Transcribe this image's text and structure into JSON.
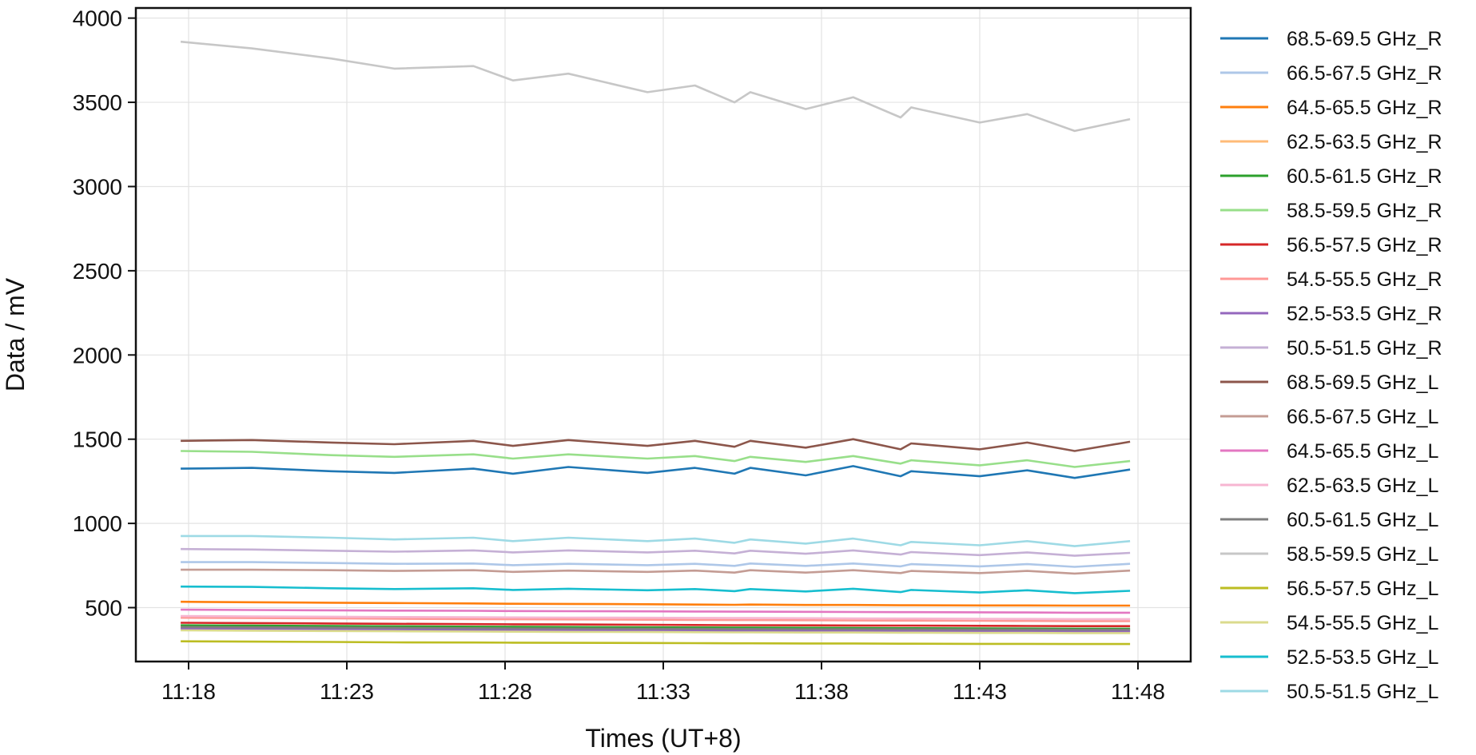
{
  "chart_data": {
    "type": "line",
    "title": "",
    "xlabel": "Times (UT+8)",
    "ylabel": "Data / mV",
    "xlim": [
      "11:16:20",
      "11:49:40"
    ],
    "ylim": [
      180,
      4060
    ],
    "x_ticks": [
      "11:18",
      "11:23",
      "11:28",
      "11:33",
      "11:38",
      "11:43",
      "11:48"
    ],
    "y_ticks": [
      500,
      1000,
      1500,
      2000,
      2500,
      3000,
      3500,
      4000
    ],
    "grid": true,
    "legend_position": "outside-right",
    "x": [
      "11:17:45",
      "11:20:00",
      "11:22:30",
      "11:24:30",
      "11:27:00",
      "11:28:15",
      "11:30:00",
      "11:32:30",
      "11:34:00",
      "11:35:15",
      "11:35:45",
      "11:37:30",
      "11:39:00",
      "11:40:30",
      "11:40:50",
      "11:43:00",
      "11:44:30",
      "11:46:00",
      "11:47:45"
    ],
    "series": [
      {
        "name": "68.5-69.5 GHz_R",
        "color": "#1f77b4",
        "values": [
          1325,
          1330,
          1310,
          1300,
          1325,
          1295,
          1335,
          1300,
          1330,
          1295,
          1330,
          1285,
          1340,
          1280,
          1310,
          1280,
          1315,
          1270,
          1320
        ]
      },
      {
        "name": "66.5-67.5 GHz_R",
        "color": "#aec7e8",
        "values": [
          770,
          770,
          765,
          760,
          762,
          752,
          760,
          752,
          760,
          748,
          762,
          748,
          762,
          745,
          758,
          745,
          758,
          742,
          760
        ]
      },
      {
        "name": "64.5-65.5 GHz_R",
        "color": "#ff7f0e",
        "values": [
          535,
          532,
          529,
          527,
          525,
          523,
          522,
          520,
          518,
          517,
          518,
          516,
          516,
          514,
          514,
          513,
          513,
          512,
          512
        ]
      },
      {
        "name": "62.5-63.5 GHz_R",
        "color": "#ffbb78",
        "values": [
          380,
          378,
          376,
          375,
          373,
          372,
          371,
          370,
          369,
          368,
          368,
          367,
          367,
          366,
          366,
          365,
          365,
          364,
          364
        ]
      },
      {
        "name": "60.5-61.5 GHz_R",
        "color": "#2ca02c",
        "values": [
          395,
          393,
          391,
          389,
          387,
          386,
          385,
          383,
          382,
          381,
          381,
          380,
          379,
          378,
          378,
          377,
          376,
          375,
          375
        ]
      },
      {
        "name": "58.5-59.5 GHz_R",
        "color": "#98df8a",
        "values": [
          1430,
          1425,
          1405,
          1395,
          1410,
          1385,
          1410,
          1385,
          1400,
          1370,
          1395,
          1365,
          1400,
          1355,
          1375,
          1345,
          1375,
          1335,
          1370
        ]
      },
      {
        "name": "56.5-57.5 GHz_R",
        "color": "#d62728",
        "values": [
          410,
          408,
          406,
          404,
          402,
          401,
          400,
          398,
          397,
          396,
          396,
          395,
          394,
          393,
          393,
          392,
          391,
          390,
          390
        ]
      },
      {
        "name": "54.5-55.5 GHz_R",
        "color": "#ff9896",
        "values": [
          440,
          438,
          436,
          434,
          432,
          431,
          430,
          428,
          427,
          426,
          426,
          425,
          424,
          423,
          423,
          422,
          421,
          420,
          420
        ]
      },
      {
        "name": "52.5-53.5 GHz_R",
        "color": "#9467bd",
        "values": [
          375,
          373,
          371,
          369,
          368,
          367,
          366,
          365,
          364,
          363,
          363,
          362,
          362,
          361,
          361,
          360,
          360,
          359,
          359
        ]
      },
      {
        "name": "50.5-51.5 GHz_R",
        "color": "#c5b0d5",
        "values": [
          848,
          845,
          838,
          832,
          840,
          828,
          840,
          828,
          838,
          822,
          838,
          820,
          840,
          815,
          830,
          812,
          828,
          808,
          825
        ]
      },
      {
        "name": "68.5-69.5 GHz_L",
        "color": "#8c564b",
        "values": [
          1490,
          1495,
          1480,
          1470,
          1490,
          1460,
          1495,
          1460,
          1490,
          1455,
          1490,
          1450,
          1500,
          1440,
          1475,
          1440,
          1480,
          1430,
          1485
        ]
      },
      {
        "name": "66.5-67.5 GHz_L",
        "color": "#c49c94",
        "values": [
          725,
          725,
          722,
          718,
          722,
          712,
          720,
          712,
          720,
          708,
          722,
          708,
          722,
          705,
          718,
          705,
          718,
          702,
          720
        ]
      },
      {
        "name": "64.5-65.5 GHz_L",
        "color": "#e377c2",
        "values": [
          488,
          486,
          484,
          482,
          481,
          480,
          479,
          478,
          477,
          476,
          476,
          475,
          474,
          473,
          473,
          472,
          471,
          470,
          470
        ]
      },
      {
        "name": "62.5-63.5 GHz_L",
        "color": "#f7b6d2",
        "values": [
          450,
          448,
          446,
          444,
          443,
          442,
          441,
          440,
          439,
          438,
          438,
          437,
          436,
          435,
          435,
          434,
          433,
          432,
          432
        ]
      },
      {
        "name": "60.5-61.5 GHz_L",
        "color": "#7f7f7f",
        "values": [
          385,
          383,
          381,
          380,
          378,
          377,
          376,
          375,
          374,
          373,
          373,
          372,
          372,
          371,
          371,
          370,
          370,
          369,
          369
        ]
      },
      {
        "name": "58.5-59.5 GHz_L",
        "color": "#c7c7c7",
        "values": [
          3860,
          3820,
          3760,
          3700,
          3715,
          3630,
          3670,
          3560,
          3600,
          3500,
          3560,
          3460,
          3530,
          3410,
          3470,
          3380,
          3430,
          3330,
          3400
        ]
      },
      {
        "name": "56.5-57.5 GHz_L",
        "color": "#bcbd22",
        "values": [
          300,
          298,
          296,
          294,
          293,
          292,
          291,
          290,
          289,
          288,
          288,
          287,
          287,
          286,
          286,
          285,
          285,
          284,
          284
        ]
      },
      {
        "name": "54.5-55.5 GHz_L",
        "color": "#dbdb8d",
        "values": [
          365,
          363,
          361,
          360,
          358,
          357,
          356,
          355,
          354,
          353,
          353,
          352,
          352,
          351,
          351,
          350,
          350,
          349,
          349
        ]
      },
      {
        "name": "52.5-53.5 GHz_L",
        "color": "#17becf",
        "values": [
          625,
          623,
          615,
          610,
          615,
          605,
          612,
          603,
          610,
          598,
          610,
          596,
          612,
          592,
          605,
          590,
          603,
          586,
          600
        ]
      },
      {
        "name": "50.5-51.5 GHz_L",
        "color": "#9edae5",
        "values": [
          925,
          925,
          915,
          905,
          915,
          895,
          915,
          895,
          910,
          885,
          905,
          880,
          910,
          870,
          890,
          870,
          895,
          865,
          895
        ]
      }
    ]
  }
}
